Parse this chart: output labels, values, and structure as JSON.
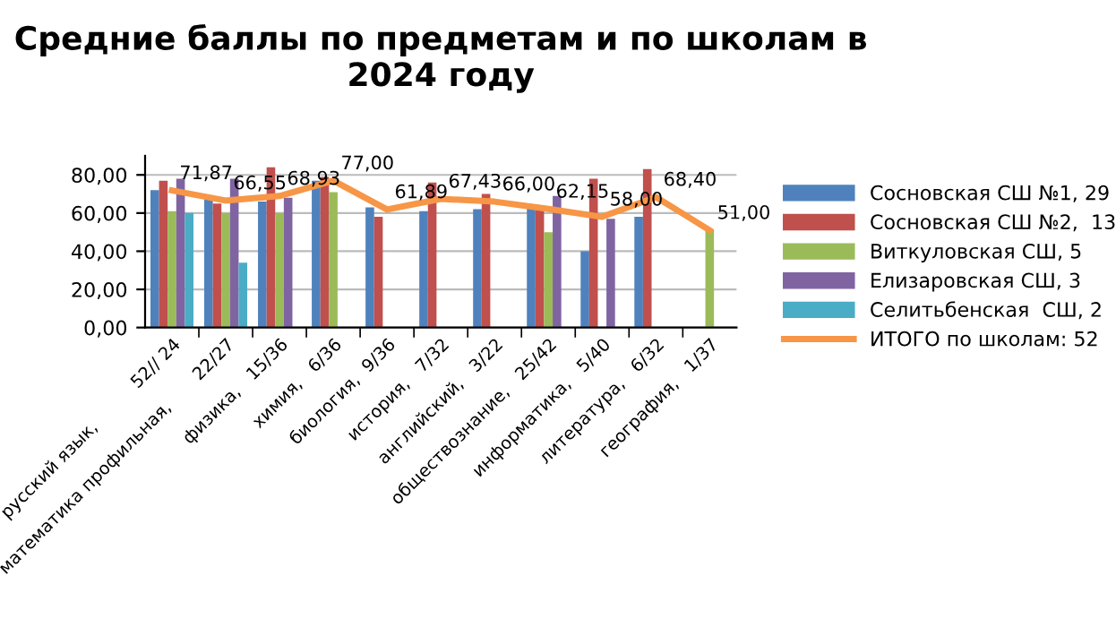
{
  "chart_data": {
    "type": "bar",
    "title": "Средние баллы по предметам и по школам в 2024 году",
    "categories": [
      "русский язык,          52// 24",
      "математика профильная,       22/27",
      "физика,   15/36",
      "химия,   6/36",
      "биология,  9/36",
      "история,   7/32",
      "английский,   3/22",
      "обществознание,   25/42",
      "информатика,   5/40",
      "литература,   6/32",
      "география,   1/37"
    ],
    "series": [
      {
        "name": "Сосновская СШ №1, 29",
        "color": "#4f81bd",
        "values": [
          72,
          67,
          66,
          77,
          63,
          61,
          62,
          63,
          40,
          58,
          null
        ]
      },
      {
        "name": "Сосновская СШ №2,  13",
        "color": "#c0504d",
        "values": [
          77,
          65,
          84,
          79,
          58,
          76,
          70,
          62,
          78,
          83,
          null
        ]
      },
      {
        "name": "Виткуловская СШ, 5",
        "color": "#9bbb59",
        "values": [
          61,
          60,
          60,
          71,
          null,
          null,
          null,
          50,
          null,
          null,
          51
        ]
      },
      {
        "name": "Елизаровская СШ, 3",
        "color": "#8064a2",
        "values": [
          78,
          78,
          68,
          null,
          null,
          null,
          null,
          69,
          57,
          null,
          null
        ]
      },
      {
        "name": "Селитьбенская  СШ, 2",
        "color": "#4bacc6",
        "values": [
          60,
          34,
          null,
          null,
          null,
          null,
          null,
          null,
          null,
          null,
          null
        ]
      },
      {
        "name": "ИТОГО по школам: 52",
        "type": "line",
        "color": "#f79646",
        "values": [
          71.87,
          66.55,
          68.93,
          77.0,
          61.89,
          67.43,
          66.0,
          62.15,
          58.0,
          68.4,
          51.0
        ],
        "value_labels": [
          "71,87",
          "66,55",
          "68,93",
          "77,00",
          "61,89",
          "67,43",
          "66,00",
          "62,15",
          "58,00",
          "68,40",
          "51,00"
        ]
      }
    ],
    "ylim": [
      0,
      90
    ],
    "yticks": [
      {
        "value": 0,
        "label": "0,00"
      },
      {
        "value": 20,
        "label": "20,00"
      },
      {
        "value": 40,
        "label": "40,00"
      },
      {
        "value": 60,
        "label": "60,00"
      },
      {
        "value": 80,
        "label": "80,00"
      }
    ],
    "grid": "y",
    "legend": "right"
  }
}
